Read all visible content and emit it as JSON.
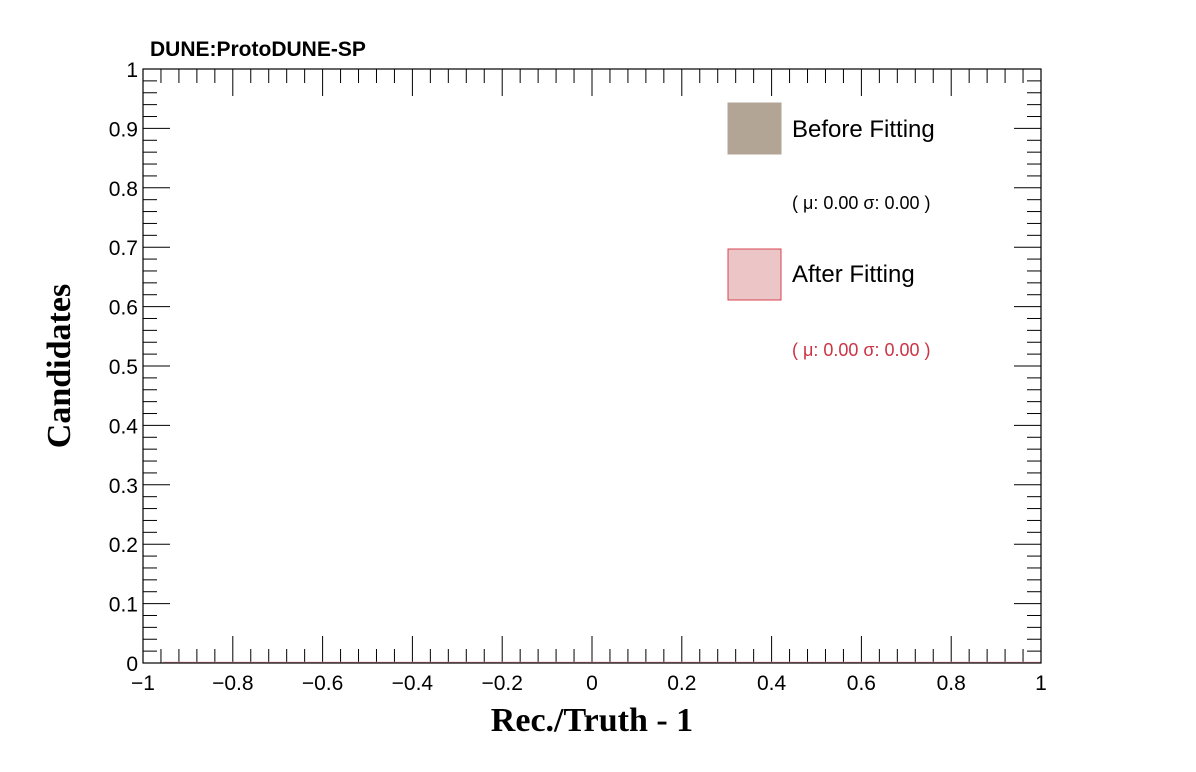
{
  "experiment_label": "DUNE:ProtoDUNE-SP",
  "legend": {
    "entries": [
      {
        "label": "Before Fitting",
        "stats": "( μ: 0.00 σ: 0.00 )",
        "fill": "#b2a595",
        "stroke": "#b2a595",
        "text_color": "#000000"
      },
      {
        "label": "After Fitting",
        "stats": "( μ: 0.00 σ: 0.00 )",
        "fill": "#ecc5c7",
        "stroke": "#d94452",
        "text_color": "#cc3344"
      }
    ]
  },
  "chart_data": {
    "type": "bar",
    "xlabel": "Rec./Truth - 1",
    "ylabel": "Candidates",
    "xlim": [
      -1,
      1
    ],
    "ylim": [
      0,
      1
    ],
    "x_ticks": [
      "−1",
      "−0.8",
      "−0.6",
      "−0.4",
      "−0.2",
      "0",
      "0.2",
      "0.4",
      "0.6",
      "0.8",
      "1"
    ],
    "y_ticks": [
      "0",
      "0.1",
      "0.2",
      "0.3",
      "0.4",
      "0.5",
      "0.6",
      "0.7",
      "0.8",
      "0.9",
      "1"
    ],
    "series": [
      {
        "name": "Before Fitting",
        "mean": 0.0,
        "sigma": 0.0,
        "values": []
      },
      {
        "name": "After Fitting",
        "mean": 0.0,
        "sigma": 0.0,
        "values": []
      }
    ],
    "grid": false,
    "legend_position": "top-right"
  }
}
